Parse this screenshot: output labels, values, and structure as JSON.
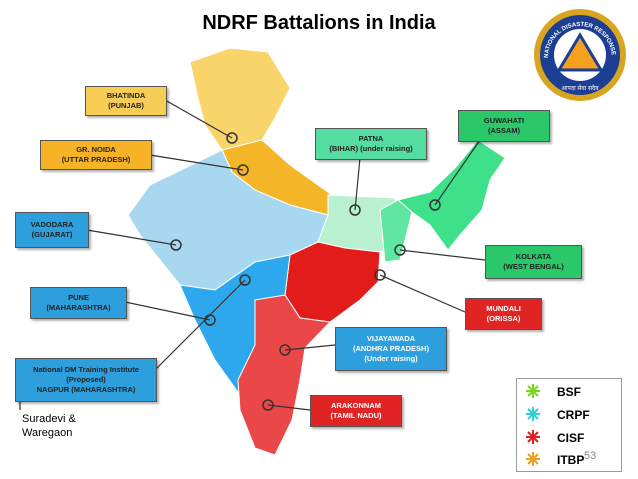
{
  "title": "NDRF Battalions in India",
  "logo": {
    "ring_text": "NATIONAL DISASTER RESPONSE FORCE",
    "motto": "आपदा सेवा सदैव"
  },
  "battalions": [
    {
      "lines": [
        "BHATINDA",
        "(PUNJAB)"
      ]
    },
    {
      "lines": [
        "GR. NOIDA",
        "(UTTAR PRADESH)"
      ]
    },
    {
      "lines": [
        "VADODARA",
        "(GUJARAT)"
      ]
    },
    {
      "lines": [
        "PUNE",
        "(MAHARASHTRA)"
      ]
    },
    {
      "lines": [
        "National DM Training Institute",
        "(Proposed)",
        "NAGPUR (MAHARASHTRA)"
      ]
    },
    {
      "lines": [
        "PATNA",
        "(BIHAR) (under raising)"
      ]
    },
    {
      "lines": [
        "GUWAHATI",
        "(ASSAM)"
      ]
    },
    {
      "lines": [
        "KOLKATA",
        "(WEST BENGAL)"
      ]
    },
    {
      "lines": [
        "MUNDALI",
        "(ORISSA)"
      ]
    },
    {
      "lines": [
        "VIJAYAWADA",
        "(ANDHRA PRADESH)",
        "(Under raising)"
      ]
    },
    {
      "lines": [
        "ARAKONNAM",
        "(TAMIL NADU)"
      ]
    }
  ],
  "legend": [
    "BSF",
    "CRPF",
    "CISF",
    "ITBP"
  ],
  "credit": [
    "Suradevi &",
    "Waregaon"
  ],
  "page_number": "53"
}
